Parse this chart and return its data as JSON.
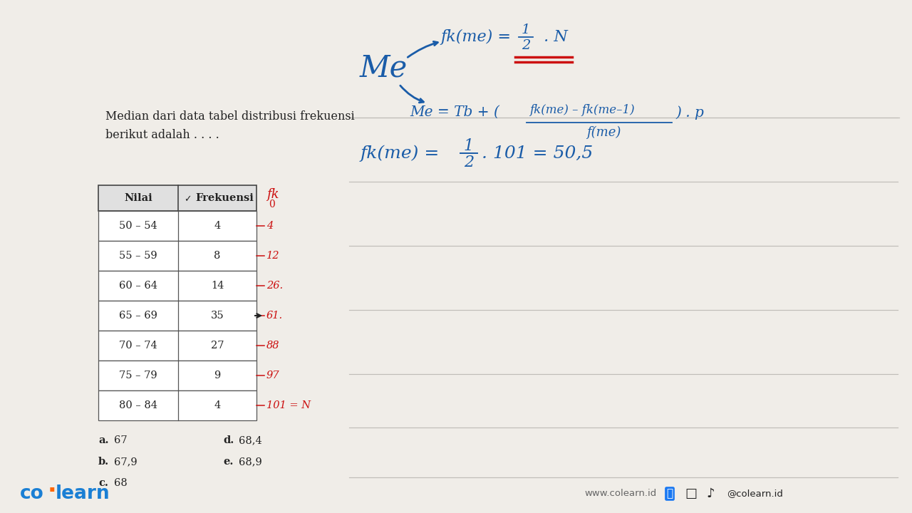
{
  "bg_color": "#f0ede8",
  "blue": "#1a5ca8",
  "red": "#cc1111",
  "dark": "#222222",
  "gray_line": "#c0bdb8",
  "logo_blue": "#1a7fd4",
  "orange": "#ff6600",
  "footer_gray": "#666666",
  "table_rows": [
    [
      "50 – 54",
      "4"
    ],
    [
      "55 – 59",
      "8"
    ],
    [
      "60 – 64",
      "14"
    ],
    [
      "65 – 69",
      "35"
    ],
    [
      "70 – 74",
      "27"
    ],
    [
      "75 – 79",
      "9"
    ],
    [
      "80 – 84",
      "4"
    ]
  ],
  "cum_freqs": [
    "4",
    "12",
    "26.",
    "61.",
    "88",
    "97",
    "101 = N"
  ],
  "answers": [
    [
      "a.",
      "67",
      "d.",
      "68,4"
    ],
    [
      "b.",
      "67,9",
      "e.",
      "68,9"
    ],
    [
      "c.",
      "68",
      "",
      ""
    ]
  ]
}
